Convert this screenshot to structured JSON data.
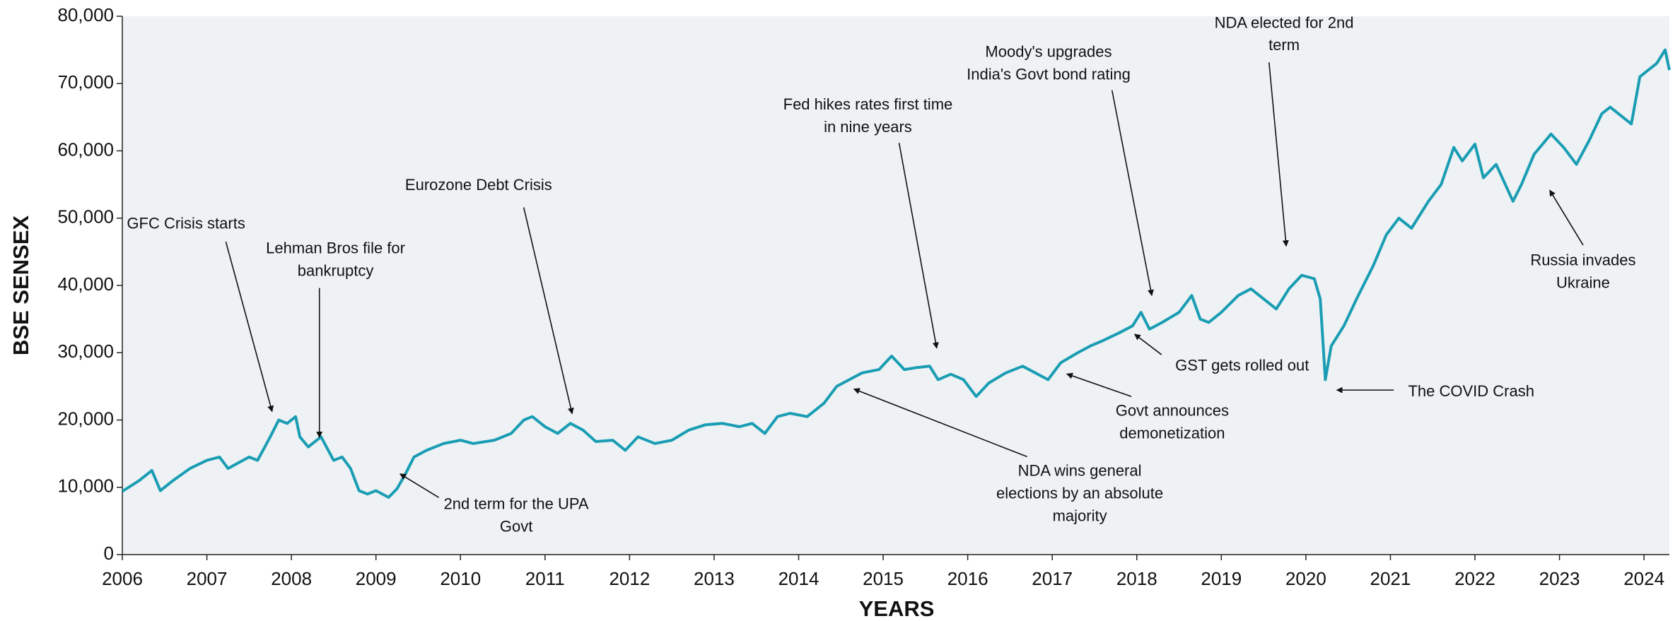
{
  "chart_data": {
    "type": "line",
    "x_label": "YEARS",
    "y_label": "BSE SENSEX",
    "xlim": [
      2006,
      2024.3
    ],
    "xticks": [
      2006,
      2007,
      2008,
      2009,
      2010,
      2011,
      2012,
      2013,
      2014,
      2015,
      2016,
      2017,
      2018,
      2019,
      2020,
      2021,
      2022,
      2023,
      2024
    ],
    "ylim": [
      0,
      80000
    ],
    "yticks": [
      {
        "value": 0,
        "label": "0"
      },
      {
        "value": 10000,
        "label": "10,000"
      },
      {
        "value": 20000,
        "label": "20,000"
      },
      {
        "value": 30000,
        "label": "30,000"
      },
      {
        "value": 40000,
        "label": "40,000"
      },
      {
        "value": 50000,
        "label": "50,000"
      },
      {
        "value": 60000,
        "label": "60,000"
      },
      {
        "value": 70000,
        "label": "70,000"
      },
      {
        "value": 80000,
        "label": "80,000"
      }
    ],
    "grid": false,
    "plot_background": "#eef2f5",
    "x": [
      2006.0,
      2006.2,
      2006.35,
      2006.45,
      2006.6,
      2006.8,
      2007.0,
      2007.15,
      2007.25,
      2007.5,
      2007.6,
      2007.75,
      2007.85,
      2007.95,
      2008.05,
      2008.1,
      2008.2,
      2008.35,
      2008.5,
      2008.6,
      2008.7,
      2008.8,
      2008.9,
      2009.0,
      2009.15,
      2009.25,
      2009.35,
      2009.45,
      2009.6,
      2009.8,
      2010.0,
      2010.15,
      2010.4,
      2010.6,
      2010.75,
      2010.85,
      2011.0,
      2011.15,
      2011.3,
      2011.45,
      2011.6,
      2011.8,
      2011.95,
      2012.1,
      2012.3,
      2012.5,
      2012.7,
      2012.9,
      2013.1,
      2013.3,
      2013.45,
      2013.6,
      2013.75,
      2013.9,
      2014.1,
      2014.3,
      2014.45,
      2014.6,
      2014.75,
      2014.95,
      2015.1,
      2015.25,
      2015.4,
      2015.55,
      2015.65,
      2015.8,
      2015.95,
      2016.1,
      2016.25,
      2016.45,
      2016.65,
      2016.8,
      2016.95,
      2017.1,
      2017.3,
      2017.45,
      2017.6,
      2017.8,
      2017.95,
      2018.05,
      2018.15,
      2018.3,
      2018.5,
      2018.65,
      2018.75,
      2018.85,
      2019.0,
      2019.2,
      2019.35,
      2019.5,
      2019.65,
      2019.8,
      2019.95,
      2020.1,
      2020.17,
      2020.23,
      2020.3,
      2020.45,
      2020.6,
      2020.8,
      2020.95,
      2021.1,
      2021.25,
      2021.45,
      2021.6,
      2021.75,
      2021.85,
      2022.0,
      2022.1,
      2022.25,
      2022.45,
      2022.55,
      2022.7,
      2022.9,
      2023.05,
      2023.2,
      2023.35,
      2023.5,
      2023.6,
      2023.75,
      2023.85,
      2023.95,
      2024.05,
      2024.15,
      2024.25,
      2024.3
    ],
    "series": [
      {
        "name": "BSE SENSEX",
        "color": "#1a9db3",
        "values": [
          9400,
          11000,
          12500,
          9500,
          11000,
          12800,
          14000,
          14500,
          12800,
          14500,
          14000,
          17500,
          20000,
          19500,
          20500,
          17500,
          16000,
          17500,
          14000,
          14500,
          12800,
          9500,
          9000,
          9500,
          8500,
          9800,
          12000,
          14500,
          15500,
          16500,
          17000,
          16500,
          17000,
          18000,
          20000,
          20500,
          19000,
          18000,
          19500,
          18500,
          16800,
          17000,
          15500,
          17500,
          16500,
          17000,
          18500,
          19300,
          19500,
          19000,
          19500,
          18000,
          20500,
          21000,
          20500,
          22500,
          25000,
          26000,
          27000,
          27500,
          29500,
          27500,
          27800,
          28000,
          26000,
          26800,
          26000,
          23500,
          25500,
          27000,
          28000,
          27000,
          26000,
          28500,
          30000,
          31000,
          31800,
          33000,
          34000,
          36000,
          33500,
          34500,
          36000,
          38500,
          35000,
          34500,
          36000,
          38500,
          39500,
          38000,
          36500,
          39500,
          41500,
          41000,
          38000,
          26000,
          31000,
          34000,
          38000,
          43000,
          47500,
          50000,
          48500,
          52500,
          55000,
          60500,
          58500,
          61000,
          56000,
          58000,
          52500,
          55000,
          59500,
          62500,
          60500,
          58000,
          61500,
          65500,
          66500,
          65000,
          64000,
          71000,
          72000,
          73000,
          75000,
          72000
        ]
      }
    ],
    "annotations": [
      {
        "lines": [
          "GFC Crisis starts"
        ]
      },
      {
        "lines": [
          "Lehman Bros file for",
          "bankruptcy"
        ]
      },
      {
        "lines": [
          "2nd term for the UPA",
          "Govt"
        ]
      },
      {
        "lines": [
          "Eurozone Debt Crisis"
        ]
      },
      {
        "lines": [
          "Fed hikes rates first time",
          "in nine years"
        ]
      },
      {
        "lines": [
          "NDA wins general",
          "elections by an absolute",
          "majority"
        ]
      },
      {
        "lines": [
          "Govt announces",
          "demonetization"
        ]
      },
      {
        "lines": [
          "Moody's upgrades",
          "India's Govt bond rating"
        ]
      },
      {
        "lines": [
          "GST gets rolled out"
        ]
      },
      {
        "lines": [
          "NDA elected for 2nd",
          "term"
        ]
      },
      {
        "lines": [
          "The COVID Crash"
        ]
      },
      {
        "lines": [
          "Russia invades",
          "Ukraine"
        ]
      }
    ]
  }
}
